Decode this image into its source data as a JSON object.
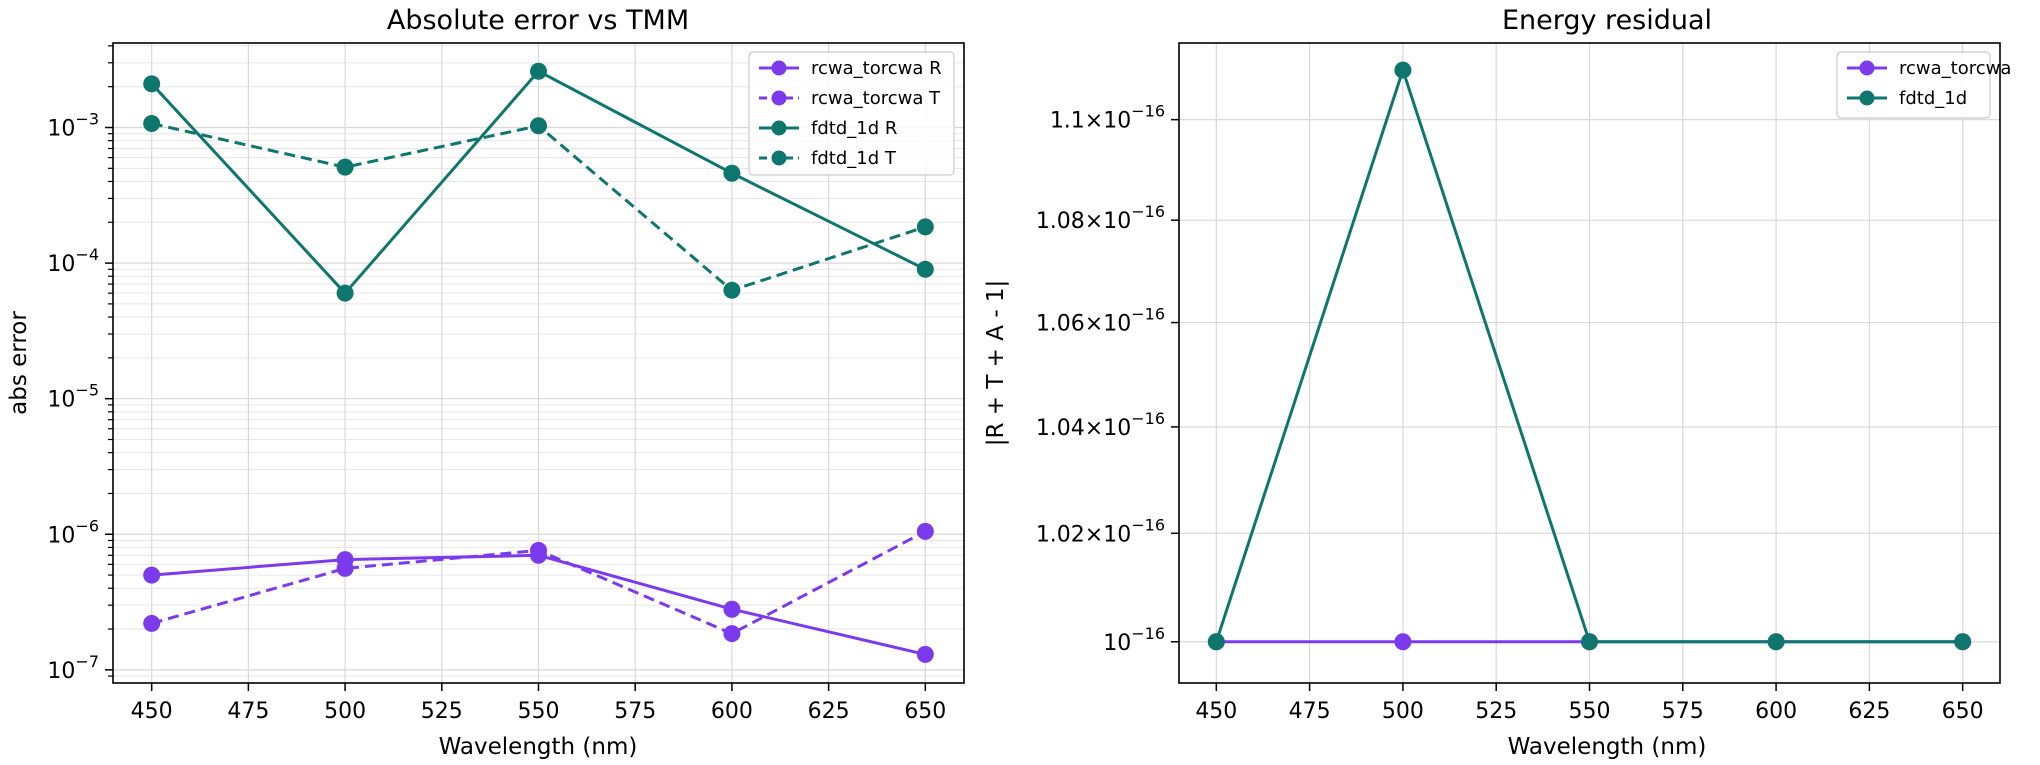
{
  "chart_data": [
    {
      "type": "line",
      "title": "Absolute error vs TMM",
      "xlabel": "Wavelength (nm)",
      "ylabel": "abs error",
      "yscale": "log",
      "xlim": [
        440,
        660
      ],
      "ylim": [
        8e-08,
        0.0042
      ],
      "xticks": [
        450,
        475,
        500,
        525,
        550,
        575,
        600,
        625,
        650
      ],
      "yticks": [
        1e-07,
        1e-06,
        1e-05,
        0.0001,
        0.001
      ],
      "ytick_labels": [
        {
          "base": "10",
          "exp": "−7"
        },
        {
          "base": "10",
          "exp": "−6"
        },
        {
          "base": "10",
          "exp": "−5"
        },
        {
          "base": "10",
          "exp": "−4"
        },
        {
          "base": "10",
          "exp": "−3"
        }
      ],
      "grid": true,
      "legend": "top-right",
      "x": [
        450,
        500,
        550,
        600,
        650
      ],
      "series": [
        {
          "name": "rcwa_torcwa R",
          "color": "#7c3aed",
          "dash": "solid",
          "values": [
            5e-07,
            6.5e-07,
            7e-07,
            2.8e-07,
            1.3e-07
          ]
        },
        {
          "name": "rcwa_torcwa T",
          "color": "#7c3aed",
          "dash": "dashed",
          "values": [
            2.2e-07,
            5.6e-07,
            7.6e-07,
            1.85e-07,
            1.05e-06
          ]
        },
        {
          "name": "fdtd_1d R",
          "color": "#0f766e",
          "dash": "solid",
          "values": [
            0.0021,
            6e-05,
            0.0026,
            0.00046,
            9e-05
          ]
        },
        {
          "name": "fdtd_1d T",
          "color": "#0f766e",
          "dash": "dashed",
          "values": [
            0.00107,
            0.00051,
            0.00103,
            6.3e-05,
            0.000185
          ]
        }
      ]
    },
    {
      "type": "line",
      "title": "Energy residual",
      "xlabel": "Wavelength (nm)",
      "ylabel": "|R + T + A - 1|",
      "yscale": "log",
      "xlim": [
        440,
        660
      ],
      "ylim": [
        9.925e-17,
        1.1155e-16
      ],
      "xticks": [
        450,
        475,
        500,
        525,
        550,
        575,
        600,
        625,
        650
      ],
      "yticks": [
        1e-16,
        1.02e-16,
        1.04e-16,
        1.06e-16,
        1.08e-16,
        1.1e-16
      ],
      "ytick_labels": [
        {
          "mant": "",
          "base": "10",
          "exp": "−16"
        },
        {
          "mant": "1.02×",
          "base": "10",
          "exp": "−16"
        },
        {
          "mant": "1.04×",
          "base": "10",
          "exp": "−16"
        },
        {
          "mant": "1.06×",
          "base": "10",
          "exp": "−16"
        },
        {
          "mant": "1.08×",
          "base": "10",
          "exp": "−16"
        },
        {
          "mant": "1.1×",
          "base": "10",
          "exp": "−16"
        }
      ],
      "grid": true,
      "legend": "top-right",
      "x": [
        450,
        500,
        550,
        600,
        650
      ],
      "series": [
        {
          "name": "rcwa_torcwa",
          "color": "#7c3aed",
          "dash": "solid",
          "values": [
            1e-16,
            1e-16,
            1e-16,
            1e-16,
            1e-16
          ]
        },
        {
          "name": "fdtd_1d",
          "color": "#0f766e",
          "dash": "solid",
          "values": [
            1e-16,
            1.11e-16,
            1e-16,
            1e-16,
            1e-16
          ]
        }
      ]
    }
  ]
}
